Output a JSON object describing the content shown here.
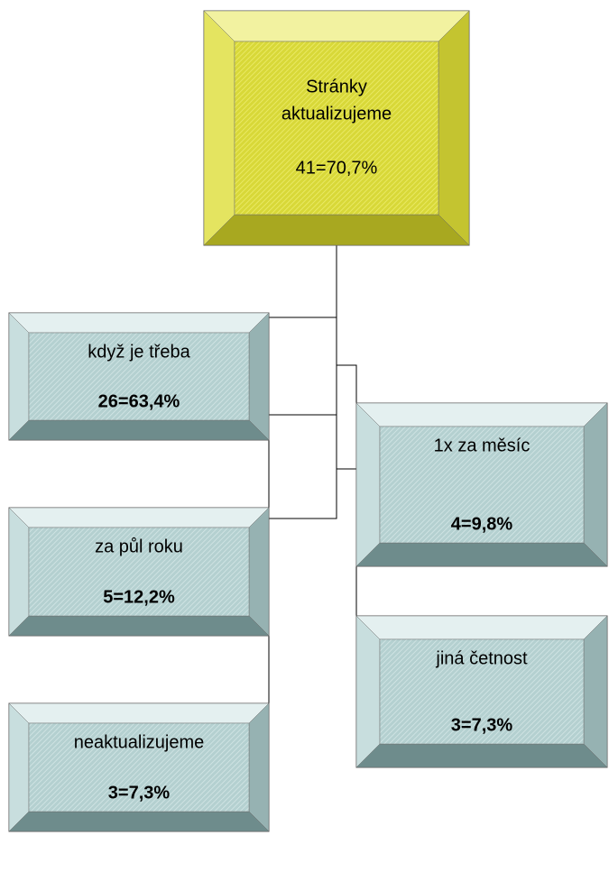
{
  "nodes": [
    {
      "label": "Stránky aktualizujeme",
      "lines": [
        "Stránky",
        "aktualizujeme"
      ],
      "value": "41=70,7%"
    },
    {
      "label": "když je třeba",
      "value": "26=63,4%"
    },
    {
      "label": "za půl roku",
      "value": "5=12,2%"
    },
    {
      "label": "neaktualizujeme",
      "value": "3=7,3%"
    },
    {
      "label": "1x za měsíc",
      "value": "4=9,8%"
    },
    {
      "label": "jiná četnost",
      "value": "3=7,3%"
    }
  ]
}
